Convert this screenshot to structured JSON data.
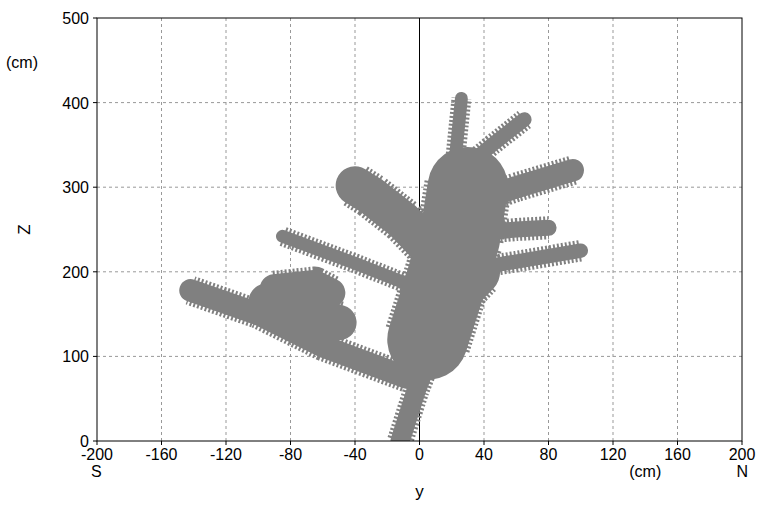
{
  "chart_data": {
    "type": "tree",
    "x_label": "y",
    "y_label": "Z",
    "annotations": {
      "x_left": "S",
      "x_right": "N",
      "x_unit": "(cm)",
      "y_unit": "(cm)"
    },
    "xlim": [
      -200,
      200
    ],
    "xticks": [
      -200,
      -160,
      -120,
      -80,
      -40,
      0,
      40,
      80,
      120,
      160,
      200
    ],
    "ylim": [
      0,
      500
    ],
    "yticks": [
      0,
      100,
      200,
      300,
      400,
      500
    ],
    "grid": true,
    "color": "#808080",
    "branches": [
      {
        "y": [
          -12,
          -2,
          10,
          16
        ],
        "z": [
          0,
          60,
          120,
          180
        ],
        "width": 12
      },
      {
        "y": [
          5,
          15,
          25,
          30
        ],
        "z": [
          120,
          180,
          240,
          300
        ],
        "width": 50
      },
      {
        "y": [
          15,
          22,
          26
        ],
        "z": [
          250,
          330,
          405
        ],
        "width": 8
      },
      {
        "y": [
          -8,
          -60,
          -100,
          -142
        ],
        "z": [
          75,
          112,
          150,
          178
        ],
        "width": 14
      },
      {
        "y": [
          -95,
          -75,
          -50
        ],
        "z": [
          165,
          155,
          140
        ],
        "width": 22
      },
      {
        "y": [
          -90,
          -65,
          -55
        ],
        "z": [
          180,
          185,
          175
        ],
        "width": 18
      },
      {
        "y": [
          0,
          -40,
          -85
        ],
        "z": [
          180,
          210,
          242
        ],
        "width": 8
      },
      {
        "y": [
          10,
          -10,
          -30,
          -40
        ],
        "z": [
          220,
          260,
          290,
          302
        ],
        "width": 24
      },
      {
        "y": [
          20,
          60,
          100
        ],
        "z": [
          200,
          212,
          225
        ],
        "width": 9
      },
      {
        "y": [
          30,
          60,
          80
        ],
        "z": [
          245,
          250,
          252
        ],
        "width": 10
      },
      {
        "y": [
          30,
          60,
          95
        ],
        "z": [
          280,
          300,
          320
        ],
        "width": 14
      },
      {
        "y": [
          20,
          45,
          65
        ],
        "z": [
          310,
          350,
          380
        ],
        "width": 9
      },
      {
        "y": [
          15,
          40,
          48
        ],
        "z": [
          300,
          325,
          300
        ],
        "width": 12
      },
      {
        "y": [
          0,
          15,
          35
        ],
        "z": [
          130,
          160,
          200
        ],
        "width": 30
      }
    ]
  }
}
